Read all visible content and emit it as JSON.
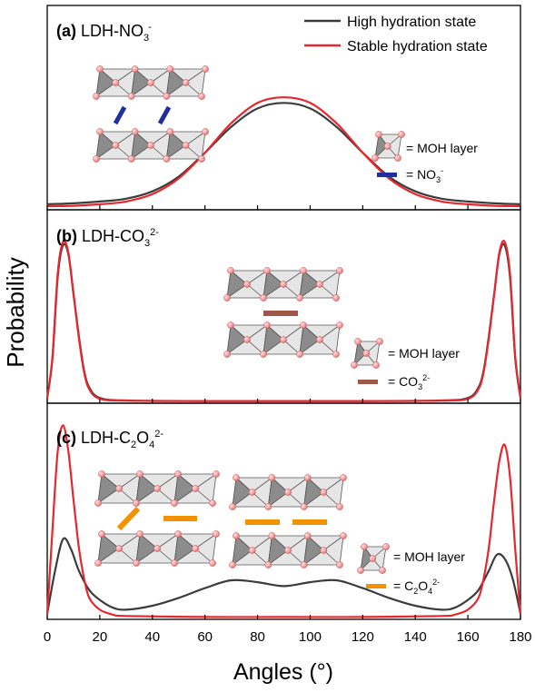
{
  "figure": {
    "ylabel": "Probability",
    "xlabel": "Angles (°)",
    "colors": {
      "high": "#3c3c3c",
      "stable": "#e8262d",
      "no3": "#1f2f9e",
      "co3": "#a0574a",
      "c2o4": "#f39200"
    }
  },
  "legend": {
    "high_label": "High hydration state",
    "stable_label": "Stable hydration state"
  },
  "panels": [
    {
      "tag": "(a)",
      "label_main": "LDH-NO",
      "label_sub": "3",
      "label_sup": "-",
      "key_layer_label": "=  MOH layer",
      "key_anion_main": "=  NO",
      "key_anion_sub": "3",
      "key_anion_sup": "-"
    },
    {
      "tag": "(b)",
      "label_main": "LDH-CO",
      "label_sub": "3",
      "label_sup": "2-",
      "key_layer_label": "=  MOH layer",
      "key_anion_main": "=  CO",
      "key_anion_sub": "3",
      "key_anion_sup": "2-"
    },
    {
      "tag": "(c)",
      "label_main": "LDH-C",
      "label_sub": "2",
      "label_mid": "O",
      "label_sub2": "4",
      "label_sup": "2-",
      "key_layer_label": "=  MOH layer",
      "key_anion_main": "=  C",
      "key_anion_sub": "2",
      "key_anion_mid": "O",
      "key_anion_sub2": "4",
      "key_anion_sup": "2-"
    }
  ],
  "chart_data": [
    {
      "type": "line",
      "panel": "(a) LDH-NO3-",
      "xlim": [
        0,
        180
      ],
      "ylim": [
        0,
        1
      ],
      "xlabel": "Angles (°)",
      "ylabel": "Probability",
      "series": [
        {
          "name": "High hydration state",
          "x": [
            0,
            10,
            20,
            30,
            40,
            50,
            60,
            70,
            80,
            90,
            100,
            110,
            120,
            130,
            140,
            150,
            160,
            170,
            180
          ],
          "y": [
            0.02,
            0.025,
            0.035,
            0.05,
            0.09,
            0.17,
            0.3,
            0.44,
            0.54,
            0.57,
            0.54,
            0.44,
            0.3,
            0.17,
            0.09,
            0.05,
            0.035,
            0.025,
            0.02
          ]
        },
        {
          "name": "Stable hydration state",
          "x": [
            0,
            10,
            20,
            30,
            40,
            50,
            60,
            70,
            80,
            90,
            100,
            110,
            120,
            130,
            140,
            150,
            160,
            170,
            180
          ],
          "y": [
            0.01,
            0.012,
            0.02,
            0.035,
            0.075,
            0.16,
            0.3,
            0.46,
            0.57,
            0.6,
            0.57,
            0.46,
            0.3,
            0.16,
            0.075,
            0.035,
            0.02,
            0.012,
            0.01
          ]
        }
      ]
    },
    {
      "type": "line",
      "panel": "(b) LDH-CO3 2-",
      "xlim": [
        0,
        180
      ],
      "ylim": [
        0,
        1
      ],
      "xlabel": "Angles (°)",
      "ylabel": "Probability",
      "series": [
        {
          "name": "High hydration state",
          "x": [
            0,
            2,
            4,
            6,
            8,
            10,
            12,
            14,
            16,
            20,
            30,
            60,
            90,
            120,
            150,
            160,
            164,
            166,
            168,
            170,
            172,
            174,
            176,
            178,
            180
          ],
          "y": [
            0.02,
            0.25,
            0.72,
            0.9,
            0.85,
            0.62,
            0.38,
            0.18,
            0.08,
            0.02,
            0.005,
            0.002,
            0.002,
            0.002,
            0.005,
            0.02,
            0.08,
            0.18,
            0.38,
            0.62,
            0.85,
            0.9,
            0.72,
            0.25,
            0.02
          ]
        },
        {
          "name": "Stable hydration state",
          "x": [
            0,
            2,
            4,
            6,
            8,
            10,
            12,
            14,
            16,
            20,
            30,
            60,
            90,
            120,
            150,
            160,
            164,
            166,
            168,
            170,
            172,
            174,
            176,
            178,
            180
          ],
          "y": [
            0.02,
            0.26,
            0.74,
            0.92,
            0.86,
            0.62,
            0.37,
            0.17,
            0.07,
            0.015,
            0.004,
            0.002,
            0.002,
            0.002,
            0.004,
            0.015,
            0.07,
            0.17,
            0.37,
            0.62,
            0.86,
            0.92,
            0.74,
            0.26,
            0.02
          ]
        }
      ]
    },
    {
      "type": "line",
      "panel": "(c) LDH-C2O4 2-",
      "xlim": [
        0,
        180
      ],
      "ylim": [
        0,
        1
      ],
      "xlabel": "Angles (°)",
      "ylabel": "Probability",
      "series": [
        {
          "name": "High hydration state",
          "x": [
            0,
            3,
            6,
            9,
            12,
            16,
            20,
            25,
            30,
            40,
            50,
            60,
            70,
            80,
            90,
            100,
            110,
            120,
            130,
            140,
            150,
            155,
            160,
            164,
            168,
            171,
            174,
            177,
            180
          ],
          "y": [
            0.02,
            0.24,
            0.4,
            0.35,
            0.24,
            0.14,
            0.09,
            0.05,
            0.04,
            0.06,
            0.1,
            0.15,
            0.19,
            0.18,
            0.16,
            0.18,
            0.19,
            0.15,
            0.1,
            0.06,
            0.04,
            0.05,
            0.09,
            0.14,
            0.24,
            0.32,
            0.3,
            0.2,
            0.02
          ]
        },
        {
          "name": "Stable hydration state",
          "x": [
            0,
            2,
            4,
            6,
            8,
            10,
            12,
            14,
            16,
            20,
            25,
            30,
            60,
            90,
            120,
            150,
            155,
            160,
            164,
            166,
            168,
            170,
            172,
            174,
            176,
            178,
            180
          ],
          "y": [
            0.02,
            0.45,
            0.85,
            0.98,
            0.85,
            0.6,
            0.36,
            0.2,
            0.1,
            0.04,
            0.015,
            0.008,
            0.003,
            0.003,
            0.003,
            0.008,
            0.015,
            0.04,
            0.1,
            0.2,
            0.36,
            0.6,
            0.8,
            0.88,
            0.72,
            0.35,
            0.02
          ]
        }
      ]
    }
  ],
  "xaxis": {
    "ticks": [
      0,
      20,
      40,
      60,
      80,
      100,
      120,
      140,
      160,
      180
    ],
    "tick_labels": [
      "0",
      "20",
      "40",
      "60",
      "80",
      "100",
      "120",
      "140",
      "160",
      "180"
    ]
  }
}
